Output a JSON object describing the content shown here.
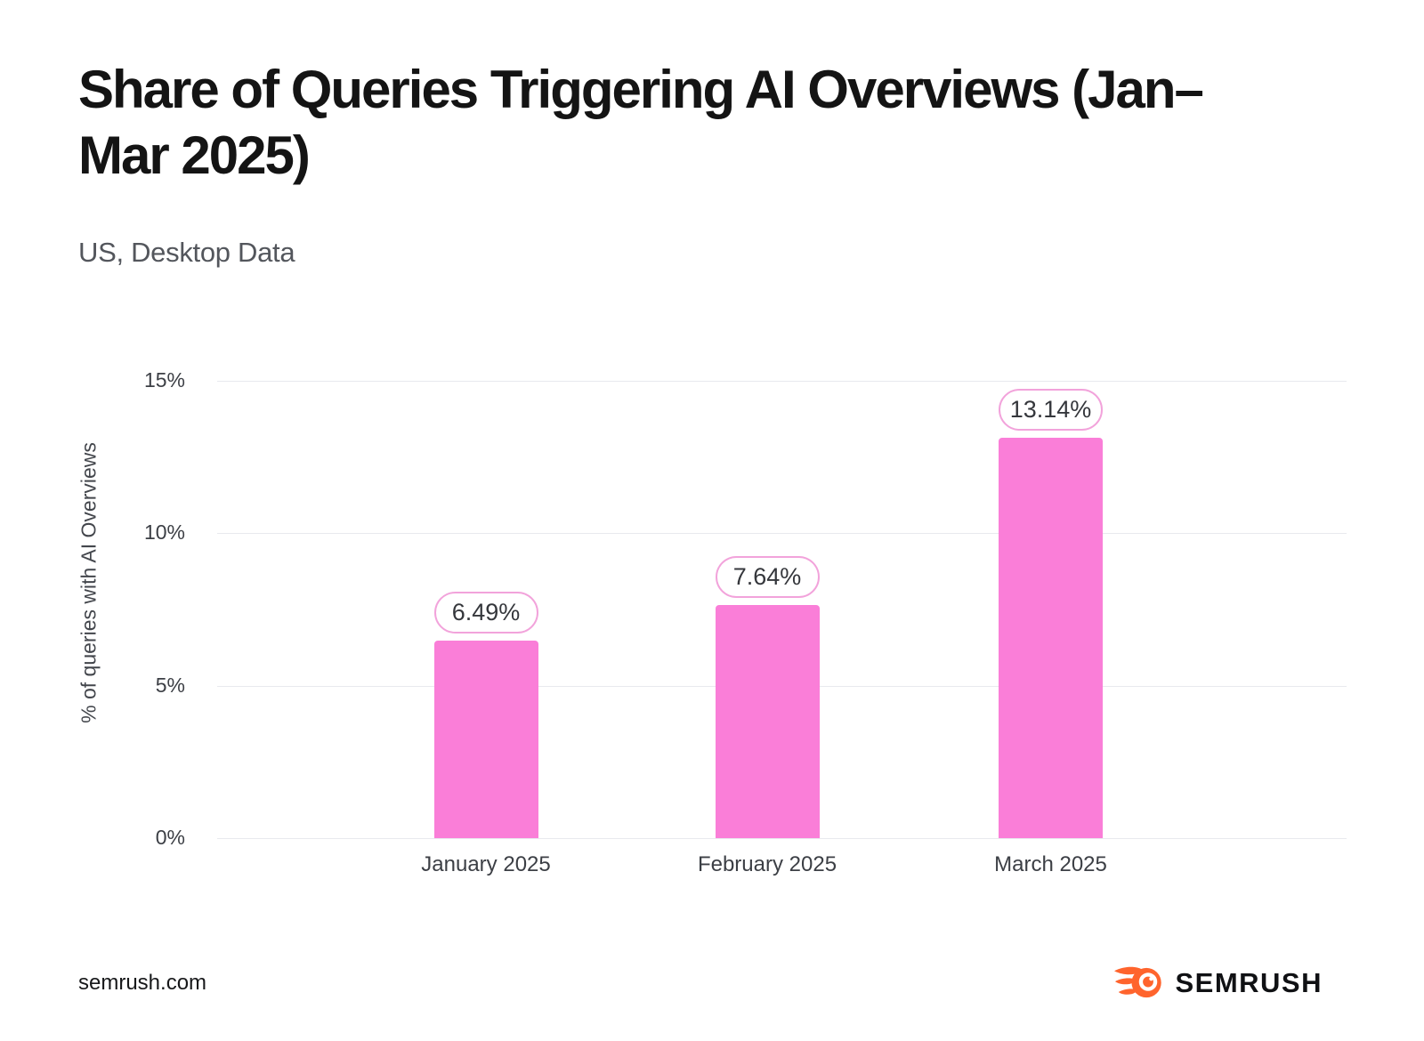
{
  "chart_data": {
    "type": "bar",
    "title": "Share of Queries Triggering AI Overviews (Jan–Mar 2025)",
    "subtitle": "US, Desktop Data",
    "categories": [
      "January 2025",
      "February 2025",
      "March 2025"
    ],
    "values": [
      6.49,
      7.64,
      13.14
    ],
    "value_labels": [
      "6.49%",
      "7.64%",
      "13.14%"
    ],
    "ylabel": "% of queries with AI Overviews",
    "xlabel": "",
    "ylim": [
      0,
      15
    ],
    "yticks": [
      {
        "value": 0,
        "label": "0%"
      },
      {
        "value": 5,
        "label": "5%"
      },
      {
        "value": 10,
        "label": "10%"
      },
      {
        "value": 15,
        "label": "15%"
      }
    ],
    "grid": "horizontal",
    "legend": "none",
    "bar_color": "#fa7ed8",
    "pill_border_color": "#f2a3db",
    "gridline_color": "#e8e9ee"
  },
  "footer": {
    "site": "semrush.com",
    "brand": "SEMRUSH",
    "logo_color": "#ff642d"
  }
}
